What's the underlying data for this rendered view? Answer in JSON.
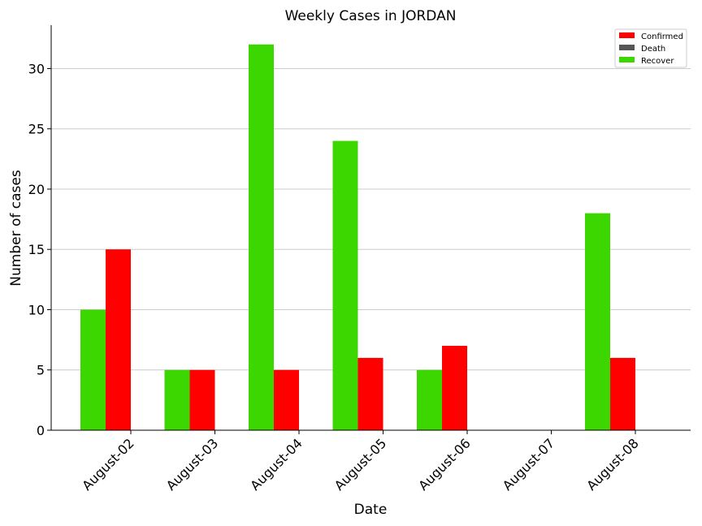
{
  "chart_data": {
    "type": "bar",
    "title": "Weekly Cases in JORDAN",
    "xlabel": "Date",
    "ylabel": "Number of cases",
    "categories": [
      "August-02",
      "August-03",
      "August-04",
      "August-05",
      "August-06",
      "August-07",
      "August-08"
    ],
    "series": [
      {
        "name": "Recover",
        "color": "#3cd600",
        "values": [
          10,
          5,
          32,
          24,
          5,
          0,
          18
        ]
      },
      {
        "name": "Confirmed",
        "color": "#ff0000",
        "values": [
          15,
          5,
          5,
          6,
          7,
          0,
          6
        ]
      },
      {
        "name": "Death",
        "color": "#555555",
        "values": [
          0,
          0,
          0,
          0,
          0,
          0,
          0
        ]
      }
    ],
    "legend_order": [
      "Confirmed",
      "Death",
      "Recover"
    ],
    "legend_position": "top-right",
    "ylim": [
      0,
      33.6
    ],
    "yticks": [
      0,
      5,
      10,
      15,
      20,
      25,
      30
    ],
    "grid": "y",
    "xtick_rotation": 45
  }
}
